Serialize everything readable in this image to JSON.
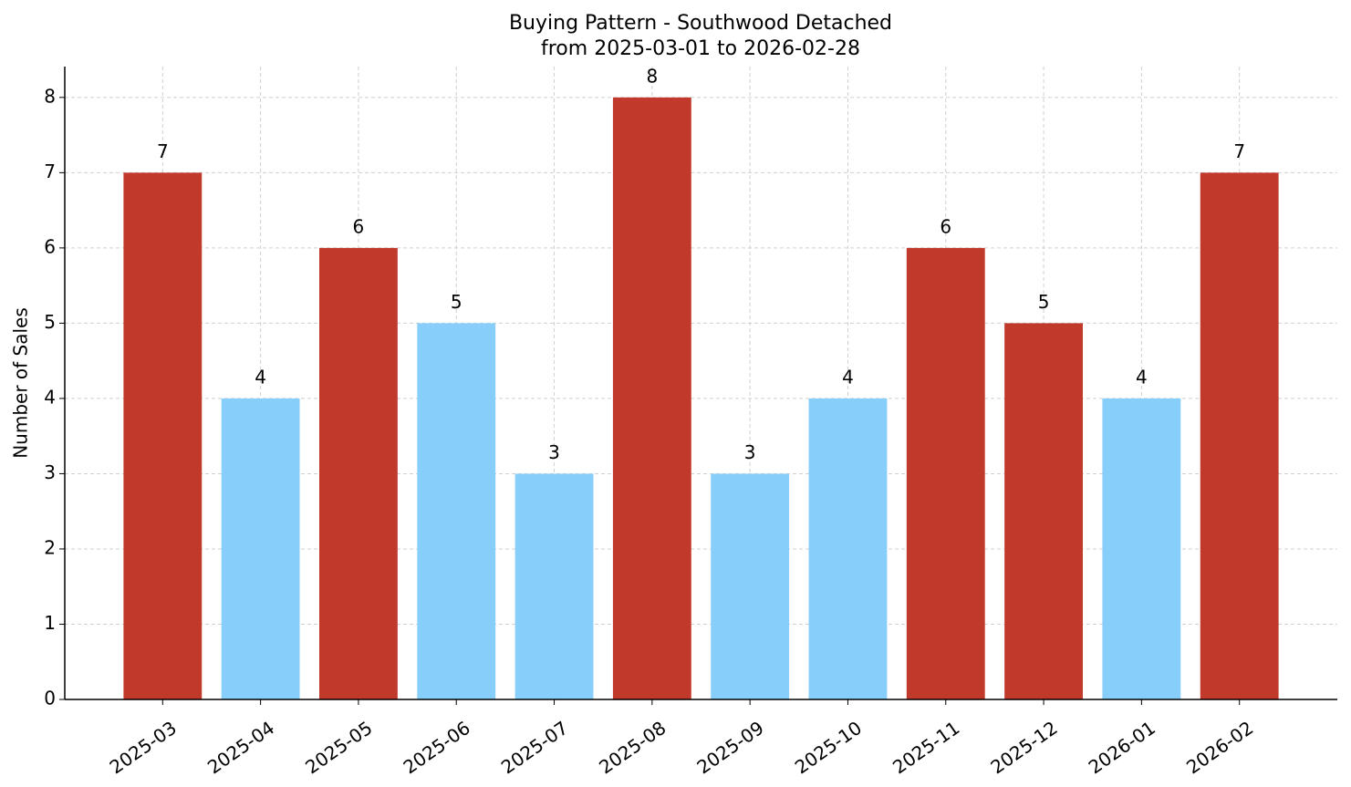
{
  "chart_data": {
    "type": "bar",
    "title": "Buying Pattern - Southwood Detached",
    "subtitle": "from 2025-03-01 to 2026-02-28",
    "y_label": "Number of Sales",
    "categories": [
      "2025-03",
      "2025-04",
      "2025-05",
      "2025-06",
      "2025-07",
      "2025-08",
      "2025-09",
      "2025-10",
      "2025-11",
      "2025-12",
      "2026-01",
      "2026-02"
    ],
    "values": [
      7,
      4,
      6,
      5,
      3,
      8,
      3,
      4,
      6,
      5,
      4,
      7
    ],
    "colors": [
      "#c0392b",
      "#87cefa",
      "#c0392b",
      "#87cefa",
      "#87cefa",
      "#c0392b",
      "#87cefa",
      "#87cefa",
      "#c0392b",
      "#c0392b",
      "#87cefa",
      "#c0392b"
    ],
    "ylim": [
      0,
      8.41
    ],
    "yticks": [
      0,
      1,
      2,
      3,
      4,
      5,
      6,
      7,
      8
    ],
    "grid": true
  }
}
